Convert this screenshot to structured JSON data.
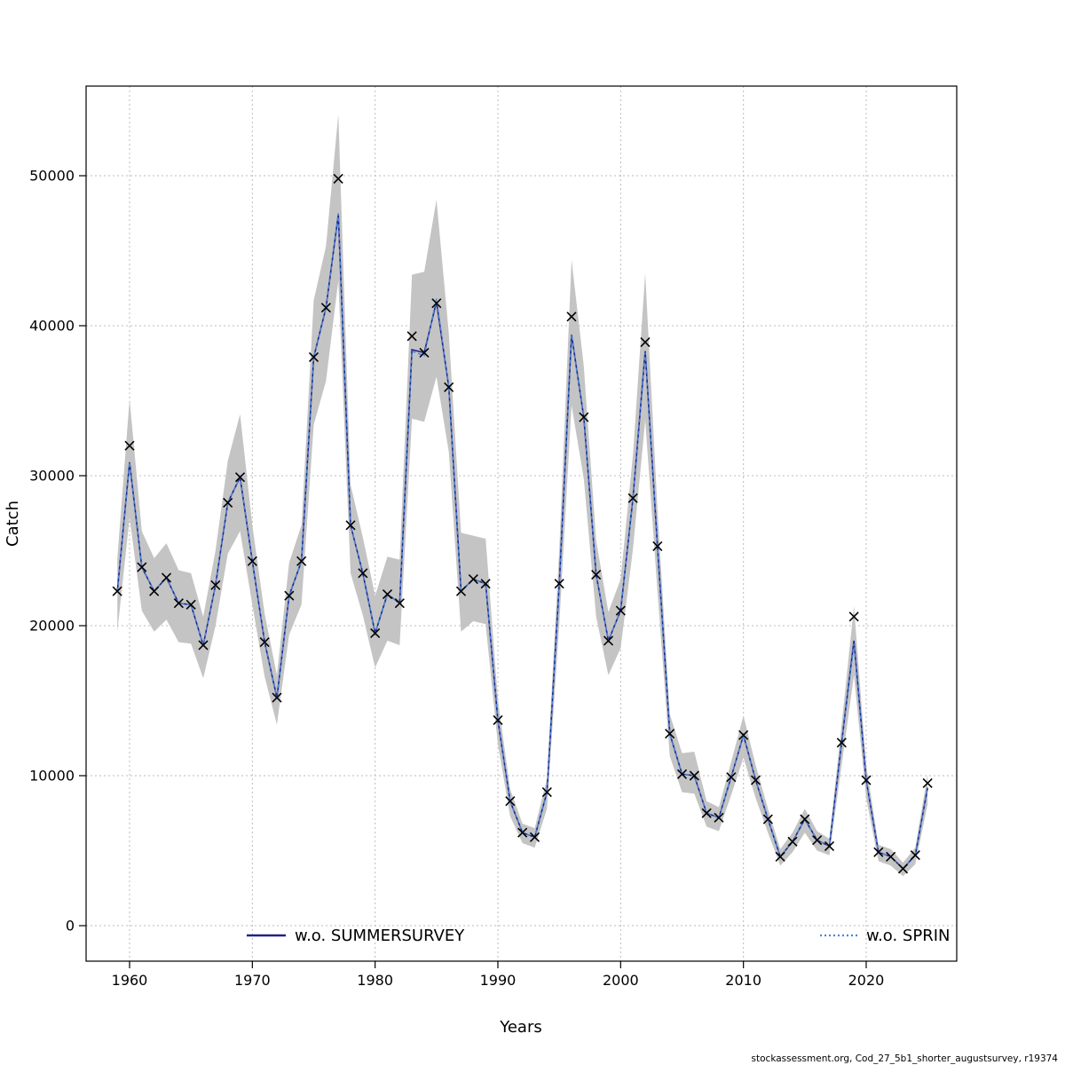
{
  "page": {
    "caption": "stockassessment.org, Cod_27_5b1_shorter_augustsurvey, r19374"
  },
  "chart_data": {
    "type": "line",
    "title": "",
    "xlabel": "Years",
    "ylabel": "Catch",
    "xlim": [
      1955.5,
      2027.5
    ],
    "ylim": [
      -2400,
      55900
    ],
    "x_ticks": [
      1960,
      1970,
      1980,
      1990,
      2000,
      2010,
      2020
    ],
    "y_ticks": [
      0,
      10000,
      20000,
      30000,
      40000,
      50000
    ],
    "grid": true,
    "grid_color": "#bbbbbb",
    "band_color": "#c4c4c4",
    "marker": "x",
    "marker_color": "#000000",
    "legend_position": "bottom-inside",
    "legend": [
      {
        "label": "w.o. SUMMERSURVEY",
        "color": "#22228a",
        "style": "solid"
      },
      {
        "label": "w.o. SPRIN",
        "color": "#4a86d2",
        "style": "dotted"
      }
    ],
    "years": [
      1959,
      1960,
      1961,
      1962,
      1963,
      1964,
      1965,
      1966,
      1967,
      1968,
      1969,
      1970,
      1971,
      1972,
      1973,
      1974,
      1975,
      1976,
      1977,
      1978,
      1979,
      1980,
      1981,
      1982,
      1983,
      1984,
      1985,
      1986,
      1987,
      1988,
      1989,
      1990,
      1991,
      1992,
      1993,
      1994,
      1995,
      1996,
      1997,
      1998,
      1999,
      2000,
      2001,
      2002,
      2003,
      2004,
      2005,
      2006,
      2007,
      2008,
      2009,
      2010,
      2011,
      2012,
      2013,
      2014,
      2015,
      2016,
      2017,
      2018,
      2019,
      2020,
      2021,
      2022,
      2023,
      2024,
      2025
    ],
    "series": [
      {
        "name": "w.o. SUMMERSURVEY",
        "values": [
          22300,
          30900,
          23900,
          22300,
          23200,
          21500,
          21400,
          18700,
          22700,
          28200,
          29900,
          24300,
          18900,
          15200,
          22000,
          24300,
          37900,
          41200,
          47400,
          26700,
          23500,
          19500,
          22100,
          21500,
          38400,
          38200,
          41600,
          35900,
          22300,
          23100,
          22800,
          13700,
          8300,
          6200,
          5900,
          8900,
          22800,
          39400,
          33900,
          23400,
          19000,
          21000,
          28500,
          38300,
          25300,
          12800,
          10100,
          10000,
          7500,
          7200,
          9900,
          12700,
          9700,
          7100,
          4600,
          5600,
          7100,
          5700,
          5300,
          12200,
          19000,
          9700,
          4900,
          4600,
          3800,
          4700,
          9200
        ]
      },
      {
        "name": "w.o. SPRIN",
        "values": [
          22300,
          30900,
          23900,
          22300,
          23200,
          21500,
          21400,
          18700,
          22700,
          28200,
          29900,
          24300,
          18900,
          15200,
          22000,
          24300,
          37900,
          41200,
          47500,
          26700,
          23500,
          19500,
          22100,
          21500,
          38300,
          38000,
          41800,
          35900,
          22300,
          23100,
          22800,
          13700,
          8300,
          6200,
          5900,
          8900,
          22800,
          39400,
          33900,
          23400,
          19000,
          21000,
          28500,
          38200,
          25300,
          12800,
          10100,
          10000,
          7500,
          7200,
          9900,
          12700,
          9700,
          7100,
          4600,
          5600,
          7100,
          5700,
          5300,
          12200,
          18800,
          9700,
          4900,
          4600,
          3800,
          4700,
          9200
        ]
      }
    ],
    "observations": [
      22300,
      32000,
      23900,
      22300,
      23200,
      21500,
      21400,
      18700,
      22700,
      28200,
      29900,
      24300,
      18900,
      15200,
      22000,
      24300,
      37900,
      41200,
      49800,
      26700,
      23500,
      19500,
      22100,
      21500,
      39300,
      38200,
      41500,
      35900,
      22300,
      23100,
      22800,
      13700,
      8300,
      6200,
      5900,
      8900,
      22800,
      40600,
      33900,
      23400,
      19000,
      21000,
      28500,
      38900,
      25300,
      12800,
      10100,
      10000,
      7500,
      7200,
      9900,
      12700,
      9700,
      7100,
      4600,
      5600,
      7100,
      5700,
      5300,
      12200,
      20600,
      9700,
      4900,
      4600,
      3800,
      4700,
      9500
    ],
    "band_lower": [
      19600,
      27200,
      21000,
      19600,
      20400,
      18900,
      18800,
      16500,
      20000,
      24800,
      26300,
      21400,
      16600,
      13400,
      19400,
      21400,
      33400,
      36300,
      43000,
      23500,
      20700,
      17200,
      19000,
      18700,
      33800,
      33600,
      36600,
      31600,
      19600,
      20300,
      20100,
      12100,
      7300,
      5500,
      5200,
      7800,
      20100,
      34700,
      29800,
      20600,
      16700,
      18500,
      25100,
      33700,
      22300,
      11300,
      8900,
      8800,
      6600,
      6300,
      8700,
      11200,
      8500,
      6200,
      4000,
      4900,
      6200,
      5000,
      4700,
      10700,
      16700,
      8500,
      4300,
      4000,
      3300,
      4100,
      8100
    ],
    "band_upper": [
      24500,
      35100,
      26300,
      24500,
      25500,
      23700,
      23500,
      20600,
      25000,
      31000,
      34100,
      26700,
      20800,
      16700,
      24200,
      26700,
      41700,
      45300,
      54100,
      29400,
      25900,
      22000,
      24600,
      24400,
      43400,
      43600,
      48400,
      39500,
      26200,
      26000,
      25800,
      15100,
      9100,
      6800,
      6500,
      9800,
      25100,
      44400,
      37300,
      25700,
      20900,
      23100,
      31400,
      43500,
      27800,
      14100,
      11500,
      11600,
      8300,
      7900,
      10900,
      14000,
      10700,
      7800,
      5100,
      6200,
      7800,
      6300,
      5800,
      13400,
      21300,
      10700,
      5400,
      5100,
      4200,
      5200,
      10100
    ]
  }
}
